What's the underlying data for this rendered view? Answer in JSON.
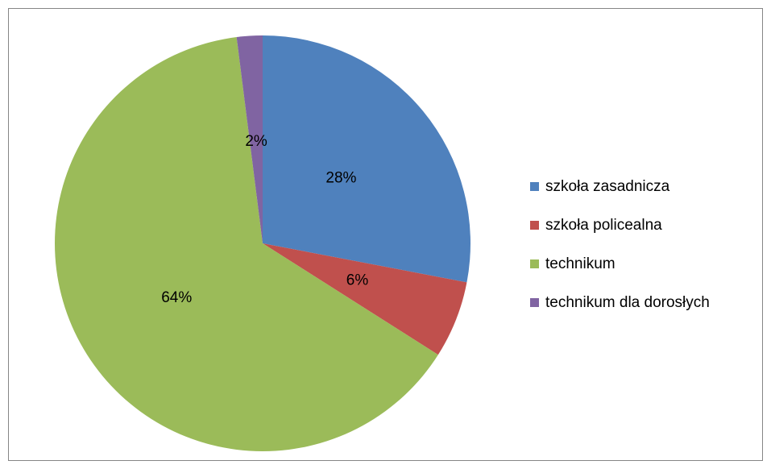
{
  "chart_data": {
    "type": "pie",
    "categories": [
      "szkoła zasadnicza",
      "szkoła policealna",
      "technikum",
      "technikum dla dorosłych"
    ],
    "values": [
      28,
      6,
      64,
      2
    ],
    "value_labels": [
      "28%",
      "6%",
      "64%",
      "2%"
    ],
    "colors": [
      "#4f81bd",
      "#c0504d",
      "#9bbb59",
      "#8064a2"
    ],
    "legend": "right"
  }
}
